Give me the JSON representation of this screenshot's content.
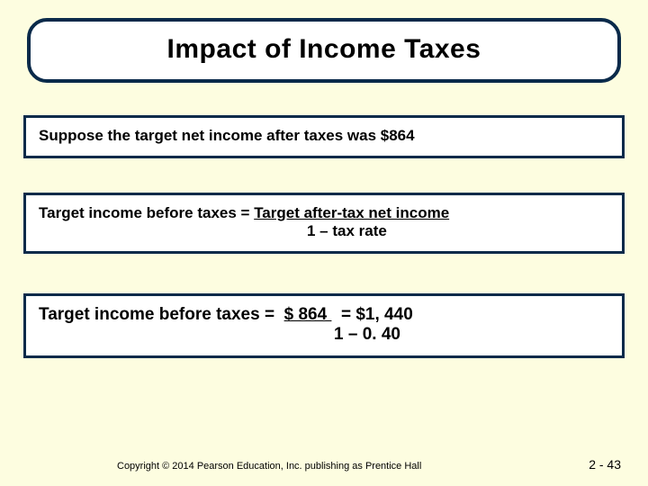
{
  "slide": {
    "background_color": "#fdfde0",
    "border_color": "#0a2a4a",
    "text_color": "#000000",
    "title": "Impact of Income Taxes",
    "title_fontsize": 30,
    "box1": {
      "text": "Suppose the target net income after taxes was $864"
    },
    "box2": {
      "lhs": "Target income before taxes = ",
      "rhs_top": "Target after-tax net income",
      "rhs_bottom": "1 – tax rate"
    },
    "box3": {
      "lhs": "Target income before taxes =  ",
      "rhs_top": "$ 864 ",
      "rhs_mid": "  = $1, 440",
      "rhs_bottom": "1 – 0. 40"
    },
    "footer": {
      "copyright": "Copyright © 2014 Pearson Education, Inc. publishing as Prentice Hall",
      "pagenum": "2 - 43"
    }
  }
}
